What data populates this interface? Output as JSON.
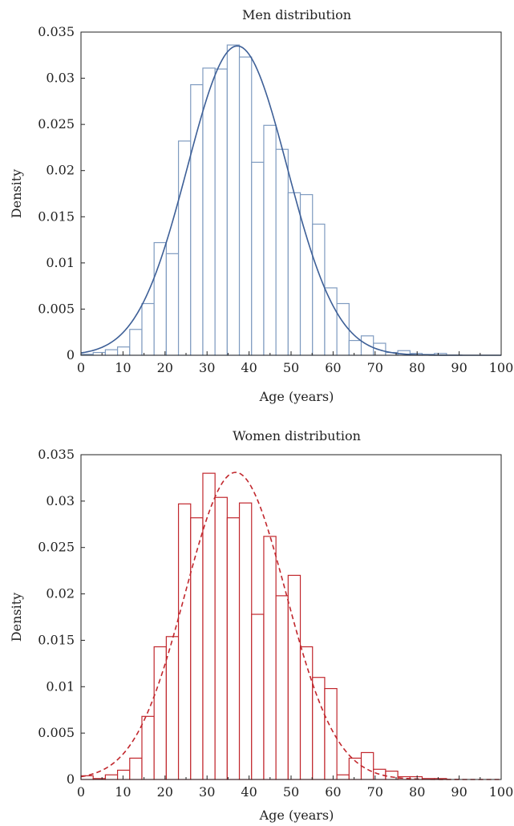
{
  "colors": {
    "men": "#3d5f97",
    "men_bar": "#7f9bc0",
    "women": "#c1272d",
    "axis": "#222222"
  },
  "chart_data": [
    {
      "type": "bar",
      "title": "Men distribution",
      "xlabel": "Age (years)",
      "ylabel": "Density",
      "xlim": [
        0,
        100
      ],
      "ylim": [
        0,
        0.035
      ],
      "x_ticks": [
        "0",
        "10",
        "20",
        "30",
        "40",
        "50",
        "60",
        "70",
        "80",
        "90",
        "100"
      ],
      "y_ticks": [
        "0",
        "0.005",
        "0.01",
        "0.015",
        "0.02",
        "0.025",
        "0.03",
        "0.035"
      ],
      "bin_width": 2.9,
      "bin_starts": [
        0,
        2.9,
        5.8,
        8.7,
        11.6,
        14.5,
        17.4,
        20.3,
        23.2,
        26.1,
        29.0,
        31.9,
        34.8,
        37.7,
        40.6,
        43.5,
        46.4,
        49.3,
        52.2,
        55.1,
        58.0,
        60.9,
        63.8,
        66.7,
        69.6,
        72.5,
        75.4,
        78.3,
        81.2,
        84.1
      ],
      "values": [
        0.0001,
        0.0003,
        0.0006,
        0.0009,
        0.0028,
        0.0056,
        0.0122,
        0.011,
        0.0232,
        0.0293,
        0.0311,
        0.031,
        0.0336,
        0.0323,
        0.0209,
        0.0249,
        0.0223,
        0.0176,
        0.0174,
        0.0142,
        0.0073,
        0.0056,
        0.0016,
        0.0021,
        0.0013,
        0.0003,
        0.0005,
        0.0002,
        0.0001,
        0.0002
      ],
      "series": [
        {
          "style": "solid",
          "mean": 37.2,
          "sd": 11.9,
          "peak": 0.0335
        }
      ]
    },
    {
      "type": "bar",
      "title": "Women distribution",
      "xlabel": "Age (years)",
      "ylabel": "Density",
      "xlim": [
        0,
        100
      ],
      "ylim": [
        0,
        0.035
      ],
      "x_ticks": [
        "0",
        "10",
        "20",
        "30",
        "40",
        "50",
        "60",
        "70",
        "80",
        "90",
        "100"
      ],
      "y_ticks": [
        "0",
        "0.005",
        "0.01",
        "0.015",
        "0.02",
        "0.025",
        "0.03",
        "0.035"
      ],
      "bin_width": 2.9,
      "bin_starts": [
        0,
        2.9,
        5.8,
        8.7,
        11.6,
        14.5,
        17.4,
        20.3,
        23.2,
        26.1,
        29.0,
        31.9,
        34.8,
        37.7,
        40.6,
        43.5,
        46.4,
        49.3,
        52.2,
        55.1,
        58.0,
        60.9,
        63.8,
        66.7,
        69.6,
        72.5,
        75.4,
        78.3,
        81.2,
        84.1
      ],
      "values": [
        0.0004,
        0.0001,
        0.0005,
        0.001,
        0.0023,
        0.0068,
        0.0143,
        0.0154,
        0.0297,
        0.0282,
        0.033,
        0.0304,
        0.0282,
        0.0298,
        0.0178,
        0.0262,
        0.0198,
        0.022,
        0.0143,
        0.011,
        0.0098,
        0.0005,
        0.0023,
        0.0029,
        0.0011,
        0.0009,
        0.0003,
        0.0003,
        0.0001,
        0.0001
      ],
      "series": [
        {
          "style": "dashed",
          "mean": 36.8,
          "sd": 12.0,
          "peak": 0.0331
        }
      ]
    }
  ]
}
